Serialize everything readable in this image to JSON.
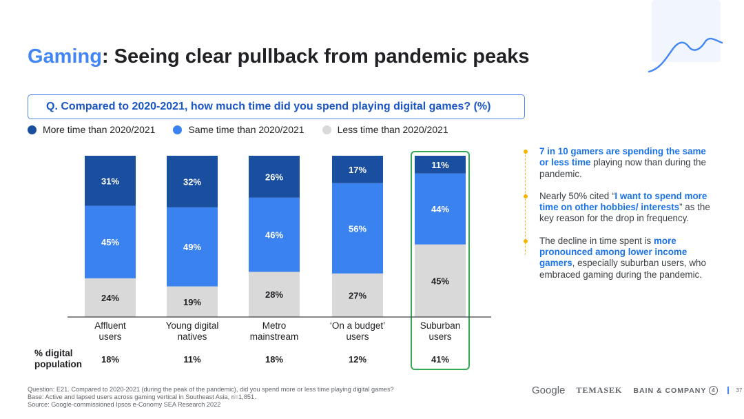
{
  "title": {
    "accent": "Gaming",
    "rest": ": Seeing clear pullback from pandemic peaks"
  },
  "question": "Q. Compared to 2020-2021, how much time did you spend playing digital games? (%)",
  "colors": {
    "more": "#1a4fa0",
    "same": "#3a82f0",
    "less": "#d9d9d9",
    "highlight": "#34a853",
    "accent": "#4285f4",
    "bullet": "#f4b400"
  },
  "chart_data": {
    "type": "bar",
    "stacked": true,
    "orientation": "vertical",
    "categories": [
      "Affluent users",
      "Young digital natives",
      "Metro mainstream",
      "‘On a budget’ users",
      "Suburban users"
    ],
    "category_lines": [
      [
        "Affluent",
        "users"
      ],
      [
        "Young digital",
        "natives"
      ],
      [
        "Metro",
        "mainstream"
      ],
      [
        "‘On a budget’",
        "users"
      ],
      [
        "Suburban",
        "users"
      ]
    ],
    "series": [
      {
        "name": "More time than 2020/2021",
        "key": "more",
        "values": [
          31,
          32,
          26,
          17,
          11
        ]
      },
      {
        "name": "Same time than 2020/2021",
        "key": "same",
        "values": [
          45,
          49,
          46,
          56,
          44
        ]
      },
      {
        "name": "Less time than 2020/2021",
        "key": "less",
        "values": [
          24,
          19,
          28,
          27,
          45
        ]
      }
    ],
    "highlighted_category": "Suburban users",
    "population_label": [
      "% digital",
      "population"
    ],
    "population": [
      18,
      11,
      18,
      12,
      41
    ],
    "value_suffix": "%",
    "legend_position": "top-left",
    "grid": false
  },
  "notes": [
    {
      "parts": [
        {
          "t": "7 in 10 gamers are spending the same or less time",
          "s": "hl"
        },
        {
          "t": " playing now than during the pandemic.",
          "s": ""
        }
      ]
    },
    {
      "parts": [
        {
          "t": "Nearly 50% cited “",
          "s": ""
        },
        {
          "t": "I want to spend more time on other hobbies/ interests",
          "s": "hl"
        },
        {
          "t": "” as the key reason for the drop in frequency.",
          "s": ""
        }
      ]
    },
    {
      "parts": [
        {
          "t": "The decline in time spent is ",
          "s": ""
        },
        {
          "t": "more pronounced among lower income gamers",
          "s": "hl"
        },
        {
          "t": ", especially suburban users, who embraced gaming during the pandemic.",
          "s": ""
        }
      ]
    }
  ],
  "footer": {
    "question": "Question: E21. Compared to 2020-2021 (during the peak of the pandemic), did you spend more or less time playing digital games?",
    "base": "Base: Active and lapsed users across gaming vertical in Southeast Asia, n=1,851.",
    "source": "Source: Google-commissioned Ipsos e-Conomy SEA Research 2022"
  },
  "logos": {
    "google": "Google",
    "temasek": "TEMASEK",
    "bain": "BAIN & COMPANY",
    "bain_mark": "4"
  },
  "page_number": "37"
}
